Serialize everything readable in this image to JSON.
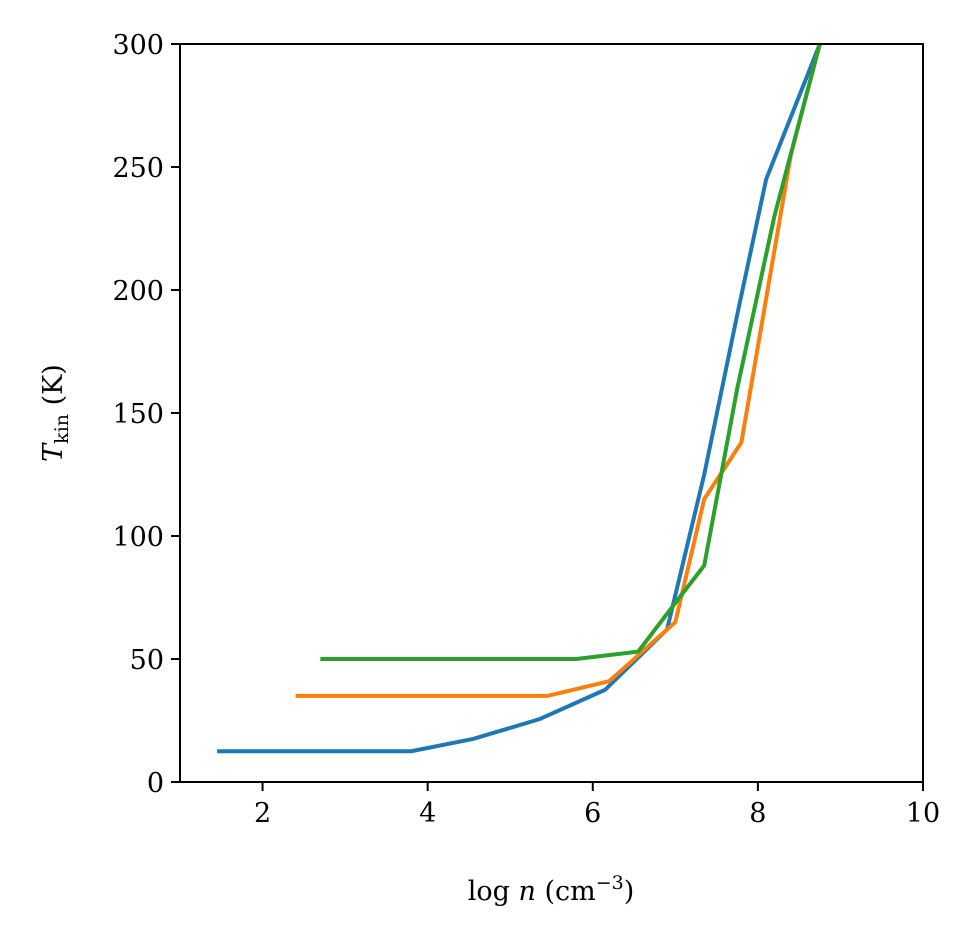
{
  "chart_data": {
    "type": "line",
    "xlabel": {
      "prefix": "log ",
      "var": "n",
      "unit_open": " (cm",
      "unit_sup": "−3",
      "unit_close": ")"
    },
    "ylabel": {
      "var": "T",
      "sub": "kin",
      "unit": " (K)"
    },
    "xlim": [
      1,
      10
    ],
    "ylim": [
      0,
      300
    ],
    "xticks": [
      2,
      4,
      6,
      8,
      10
    ],
    "yticks": [
      0,
      50,
      100,
      150,
      200,
      250,
      300
    ],
    "grid": false,
    "series": [
      {
        "color": "#1f77b4",
        "x": [
          1.45,
          3.8,
          4.55,
          5.35,
          6.15,
          6.9,
          7.35,
          7.75,
          8.1,
          8.75
        ],
        "y": [
          12.5,
          12.5,
          17.5,
          25.5,
          37.5,
          62,
          125,
          190,
          245,
          300
        ]
      },
      {
        "color": "#ff7f0e",
        "x": [
          2.4,
          5.45,
          6.2,
          7.0,
          7.35,
          7.8,
          8.4,
          8.75
        ],
        "y": [
          35,
          35,
          41,
          65,
          115,
          138,
          255,
          300
        ]
      },
      {
        "color": "#2ca02c",
        "x": [
          2.7,
          5.8,
          6.55,
          7.05,
          7.35,
          7.75,
          8.2,
          8.75
        ],
        "y": [
          50,
          50,
          53,
          75,
          88,
          160,
          230,
          300
        ]
      }
    ]
  }
}
